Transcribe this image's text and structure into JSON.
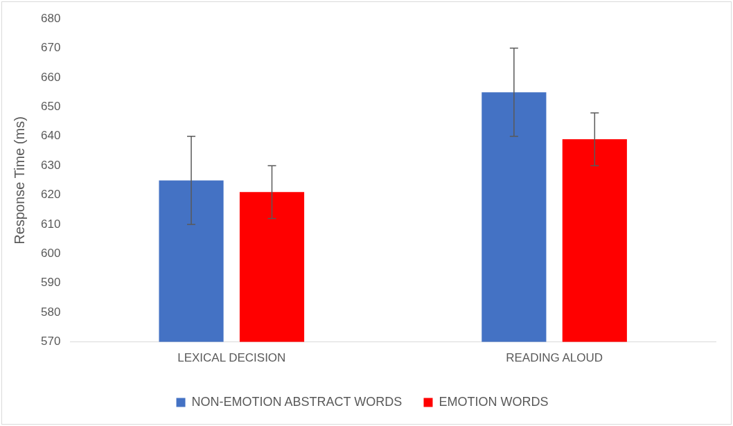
{
  "chart_data": {
    "type": "bar",
    "ylabel": "Response Time (ms)",
    "categories": [
      "LEXICAL DECISION",
      "READING ALOUD"
    ],
    "series": [
      {
        "name": "NON-EMOTION ABSTRACT WORDS",
        "color": "#4472c4",
        "values": [
          625,
          655
        ],
        "errors": [
          15,
          15
        ]
      },
      {
        "name": "EMOTION WORDS",
        "color": "#ff0000",
        "values": [
          621,
          639
        ],
        "errors": [
          9,
          9
        ]
      }
    ],
    "ylim": [
      570,
      680
    ],
    "yticks": [
      570,
      580,
      590,
      600,
      610,
      620,
      630,
      640,
      650,
      660,
      670,
      680
    ],
    "grid": false,
    "legend": "bottom"
  }
}
